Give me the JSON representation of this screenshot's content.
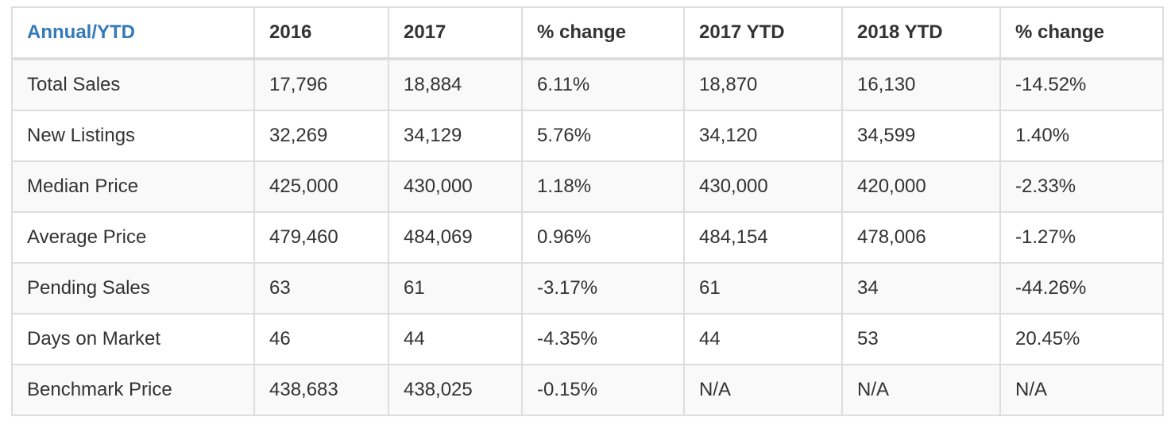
{
  "table": {
    "headers": [
      "Annual/YTD",
      "2016",
      "2017",
      "% change",
      "2017 YTD",
      "2018 YTD",
      "% change"
    ],
    "rows": [
      [
        "Total Sales",
        "17,796",
        "18,884",
        "6.11%",
        "18,870",
        "16,130",
        "-14.52%"
      ],
      [
        "New Listings",
        "32,269",
        "34,129",
        "5.76%",
        "34,120",
        "34,599",
        "1.40%"
      ],
      [
        "Median Price",
        "425,000",
        "430,000",
        "1.18%",
        "430,000",
        "420,000",
        "-2.33%"
      ],
      [
        "Average Price",
        "479,460",
        "484,069",
        "0.96%",
        "484,154",
        "478,006",
        "-1.27%"
      ],
      [
        "Pending Sales",
        "63",
        "61",
        "-3.17%",
        "61",
        "34",
        "-44.26%"
      ],
      [
        "Days on Market",
        "46",
        "44",
        "-4.35%",
        "44",
        "53",
        "20.45%"
      ],
      [
        "Benchmark Price",
        "438,683",
        "438,025",
        "-0.15%",
        "N/A",
        "N/A",
        "N/A"
      ]
    ]
  },
  "colors": {
    "header_link": "#337ab7",
    "text": "#333333",
    "border": "#dddddd",
    "stripe": "#f9f9f9"
  }
}
